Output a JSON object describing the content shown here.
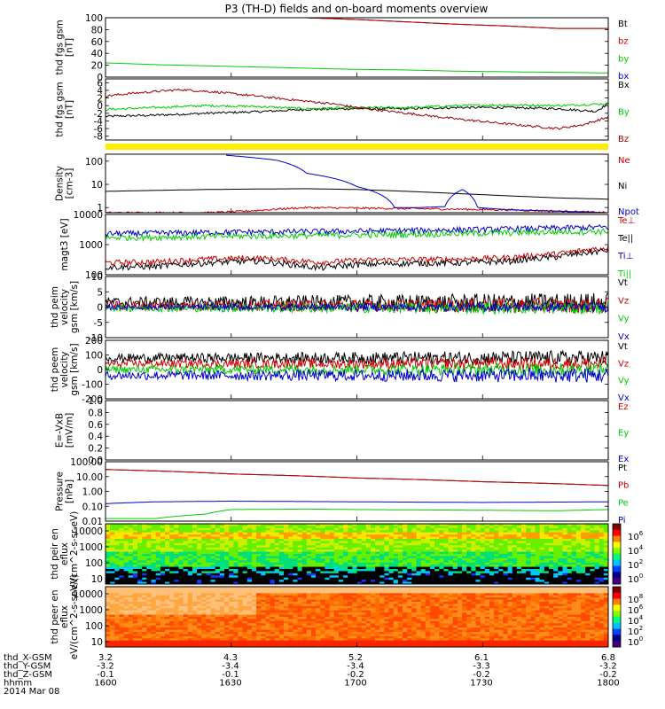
{
  "title": "P3 (TH-D) fields and on-board moments overview",
  "date_label": "2014 Mar 08",
  "footer": {
    "row_labels": [
      "thd_X-GSM",
      "thd_Y-GSM",
      "thd_Z-GSM",
      "hhmm"
    ],
    "columns": [
      {
        "x": "3.2",
        "y": "-3.2",
        "z": "-0.1",
        "t": "1600"
      },
      {
        "x": "4.3",
        "y": "-3.4",
        "z": "-0.1",
        "t": "1630"
      },
      {
        "x": "5.2",
        "y": "-3.4",
        "z": "-0.2",
        "t": "1700"
      },
      {
        "x": "6.1",
        "y": "-3.3",
        "z": "-0.2",
        "t": "1730"
      },
      {
        "x": "6.8",
        "y": "-3.2",
        "z": "-0.2",
        "t": "1800"
      }
    ]
  },
  "chart_data": [
    {
      "type": "line",
      "ylabel": "thd fgs gsm [nT]",
      "yticks": [
        "100",
        "80",
        "60",
        "40",
        "20",
        "0"
      ],
      "ylim": [
        0,
        100
      ],
      "x": [
        1600,
        1800
      ],
      "legend_placement": "right",
      "series": [
        {
          "name": "Bt",
          "color": "#000000",
          "x": [
            1600,
            1658,
            1680,
            1700,
            1720,
            1740,
            1760,
            1780,
            1800
          ],
          "values": [
            104,
            102,
            100,
            97,
            93,
            89,
            86,
            82,
            82
          ]
        },
        {
          "name": "bz",
          "color": "#cc0000",
          "x": [
            1600,
            1658,
            1680,
            1700,
            1720,
            1740,
            1760,
            1780,
            1800
          ],
          "values": [
            104,
            102,
            100,
            97,
            93,
            89,
            86,
            82,
            82
          ]
        },
        {
          "name": "by",
          "color": "#00cc00",
          "x": [
            1600,
            1620,
            1640,
            1660,
            1680,
            1700,
            1720,
            1740,
            1760,
            1780,
            1800
          ],
          "values": [
            24,
            21,
            19,
            17,
            15,
            13,
            12,
            10,
            9,
            8,
            7
          ]
        },
        {
          "name": "bx",
          "color": "#0000cc",
          "x": [
            1600,
            1620,
            1650,
            1700,
            1750,
            1800
          ],
          "values": [
            -1,
            -1.5,
            -2,
            -2,
            -2,
            -2
          ]
        }
      ]
    },
    {
      "type": "line",
      "ylabel": "thd fgs gsm [nT]",
      "yticks": [
        "6",
        "4",
        "2",
        "0",
        "-2",
        "-4",
        "-6",
        "-8"
      ],
      "ylim": [
        -9,
        7
      ],
      "x": [
        1600,
        1800
      ],
      "legend_placement": "right",
      "series": [
        {
          "name": "Bx",
          "color": "#000000",
          "x": [
            1600,
            1620,
            1640,
            1660,
            1680,
            1700,
            1720,
            1740,
            1760,
            1780,
            1795,
            1800
          ],
          "values": [
            -2.8,
            -2.5,
            -2,
            -1.6,
            -1,
            -0.8,
            -0.8,
            -0.5,
            -0.5,
            -0.8,
            -1.5,
            0.5
          ]
        },
        {
          "name": "By",
          "color": "#00cc00",
          "x": [
            1600,
            1620,
            1640,
            1660,
            1680,
            1700,
            1720,
            1740,
            1760,
            1780,
            1800
          ],
          "values": [
            -1,
            -0.5,
            0,
            -0.2,
            -0.8,
            -0.5,
            -0.5,
            0,
            0.2,
            0,
            0.5
          ]
        },
        {
          "name": "Bz",
          "color": "#990000",
          "x": [
            1600,
            1610,
            1630,
            1645,
            1660,
            1670,
            1690,
            1700,
            1720,
            1740,
            1760,
            1780,
            1790,
            1800
          ],
          "values": [
            2.5,
            3.2,
            4.2,
            3.5,
            2.5,
            1.8,
            0.5,
            -0.5,
            -2,
            -3.5,
            -4.8,
            -6,
            -5,
            -3
          ]
        }
      ]
    },
    {
      "type": "line",
      "ylabel": "Density [cm-3]",
      "yticks": [
        "100",
        "10",
        "1"
      ],
      "yscale": "log",
      "ylim": [
        0.6,
        200
      ],
      "x": [
        1600,
        1800
      ],
      "legend_placement": "right",
      "series": [
        {
          "name": "Ne",
          "color": "#cc0000",
          "x": [
            1600,
            1620,
            1640,
            1650,
            1660,
            1680,
            1700,
            1720,
            1740,
            1760,
            1780,
            1800
          ],
          "values": [
            0.6,
            0.6,
            0.6,
            0.65,
            0.75,
            1.0,
            0.95,
            0.9,
            0.85,
            0.8,
            0.7,
            0.6
          ]
        },
        {
          "name": "Ni",
          "color": "#000000",
          "x": [
            1600,
            1620,
            1640,
            1660,
            1680,
            1700,
            1720,
            1740,
            1760,
            1780,
            1800
          ],
          "values": [
            5,
            5.5,
            6,
            6.3,
            6.5,
            6,
            5,
            4,
            3.2,
            2.6,
            2.3
          ]
        },
        {
          "name": "Npot",
          "color": "#0000cc",
          "x": [
            1648,
            1668,
            1680,
            1700,
            1715,
            1725,
            1735,
            1742,
            1748,
            1760,
            1780,
            1800
          ],
          "values": [
            180,
            110,
            30,
            8,
            1.0,
            1.0,
            1.1,
            6,
            1.0,
            0.8,
            0.7,
            0.6
          ]
        }
      ]
    },
    {
      "type": "line",
      "ylabel": "magt3 [eV]",
      "yticks": [
        "10000",
        "1000",
        "100"
      ],
      "yscale": "log",
      "ylim": [
        100,
        10000
      ],
      "x": [
        1600,
        1800
      ],
      "legend_placement": "right",
      "series": [
        {
          "name": "Te⊥",
          "color": "#cc0000",
          "x": [
            1600,
            1620,
            1640,
            1660,
            1670,
            1685,
            1700,
            1720,
            1740,
            1760,
            1780,
            1800
          ],
          "values": [
            250,
            270,
            330,
            360,
            320,
            260,
            300,
            320,
            330,
            370,
            500,
            800
          ]
        },
        {
          "name": "Te||",
          "color": "#000000",
          "x": [
            1600,
            1620,
            1640,
            1660,
            1670,
            1685,
            1700,
            1720,
            1740,
            1760,
            1780,
            1800
          ],
          "values": [
            180,
            190,
            250,
            290,
            240,
            170,
            220,
            240,
            250,
            280,
            400,
            650
          ]
        },
        {
          "name": "Ti⊥",
          "color": "#0000cc",
          "x": [
            1600,
            1650,
            1700,
            1750,
            1800
          ],
          "values": [
            2300,
            2600,
            2800,
            3200,
            3800
          ]
        },
        {
          "name": "Ti||",
          "color": "#00cc00",
          "x": [
            1600,
            1650,
            1700,
            1750,
            1800
          ],
          "values": [
            1700,
            1900,
            2100,
            2400,
            2800
          ]
        }
      ]
    },
    {
      "type": "line",
      "ylabel": "thd peim velocity gsm [km/s]",
      "yticks": [
        "10",
        "5",
        "0",
        "-5",
        "-10"
      ],
      "ylim": [
        -10,
        10
      ],
      "x": [
        1600,
        1800
      ],
      "legend_placement": "right",
      "series": [
        {
          "name": "Vt",
          "color": "#000000",
          "base": 1.5,
          "noise": 2.5
        },
        {
          "name": "Vz",
          "color": "#cc0000",
          "base": 0.5,
          "noise": 2.0
        },
        {
          "name": "Vy",
          "color": "#00cc00",
          "base": -0.3,
          "noise": 1.6
        },
        {
          "name": "Vx",
          "color": "#0000cc",
          "base": 0,
          "noise": 1.2
        }
      ]
    },
    {
      "type": "line",
      "ylabel": "thd peem velocity gsm [km/s]",
      "yticks": [
        "200",
        "100",
        "0",
        "-100",
        "-200"
      ],
      "ylim": [
        -200,
        200
      ],
      "x": [
        1600,
        1800
      ],
      "legend_placement": "right",
      "series": [
        {
          "name": "Vt",
          "color": "#000000",
          "base": 80,
          "noise": 40
        },
        {
          "name": "Vz",
          "color": "#cc0000",
          "base": 40,
          "noise": 35
        },
        {
          "name": "Vy",
          "color": "#00cc00",
          "base": 0,
          "noise": 35
        },
        {
          "name": "Vx",
          "color": "#0000cc",
          "base": -40,
          "noise": 40
        }
      ]
    },
    {
      "type": "line",
      "ylabel": "E=-VxB [mV/m]",
      "yticks": [
        "1.0",
        "0.8",
        "0.6",
        "0.4",
        "0.2",
        "0.0"
      ],
      "ylim": [
        0,
        1
      ],
      "x": [
        1600,
        1800
      ],
      "legend_placement": "right",
      "series": [
        {
          "name": "Ez",
          "color": "#cc0000",
          "x": [],
          "values": []
        },
        {
          "name": "Ey",
          "color": "#00cc00",
          "x": [],
          "values": []
        },
        {
          "name": "Ex",
          "color": "#0000cc",
          "x": [],
          "values": []
        }
      ]
    },
    {
      "type": "line",
      "ylabel": "Pressure [nPa]",
      "yticks": [
        "100.00",
        "10.00",
        "1.00",
        "0.10",
        "0.01"
      ],
      "yscale": "log",
      "ylim": [
        0.01,
        100
      ],
      "x": [
        1600,
        1800
      ],
      "legend_placement": "right",
      "series": [
        {
          "name": "Pt",
          "color": "#000000",
          "x": [
            1600,
            1650,
            1700,
            1750,
            1800
          ],
          "values": [
            30,
            15,
            8,
            4.5,
            2.5
          ]
        },
        {
          "name": "Pb",
          "color": "#cc0000",
          "x": [
            1600,
            1650,
            1700,
            1750,
            1800
          ],
          "values": [
            30,
            15,
            8,
            4.5,
            2.5
          ]
        },
        {
          "name": "Pe",
          "color": "#00cc00",
          "x": [
            1600,
            1620,
            1640,
            1650,
            1680,
            1700,
            1740,
            1780,
            1800
          ],
          "values": [
            0.015,
            0.015,
            0.03,
            0.06,
            0.065,
            0.06,
            0.055,
            0.05,
            0.06
          ]
        },
        {
          "name": "Pi",
          "color": "#0000cc",
          "x": [
            1600,
            1620,
            1650,
            1700,
            1750,
            1800
          ],
          "values": [
            0.15,
            0.2,
            0.22,
            0.2,
            0.18,
            0.2
          ]
        }
      ]
    },
    {
      "type": "heatmap",
      "ylabel": "thd peir en eflux eV/(cm^2-s-sr-eV)",
      "yticks": [
        "10000",
        "1000",
        "100",
        "10"
      ],
      "yscale": "log",
      "colorbar": {
        "ticks": [
          "10^6",
          "10^4",
          "10^2",
          "10^0"
        ],
        "range": [
          0,
          7
        ]
      }
    },
    {
      "type": "heatmap",
      "ylabel": "thd peer en eflux eV/(cm^2-s-sr-eV)",
      "yticks": [
        "10000",
        "1000",
        "100",
        "10"
      ],
      "yscale": "log",
      "colorbar": {
        "ticks": [
          "10^8",
          "10^6",
          "10^4",
          "10^2",
          "10^0"
        ],
        "range": [
          0,
          9
        ]
      }
    }
  ]
}
